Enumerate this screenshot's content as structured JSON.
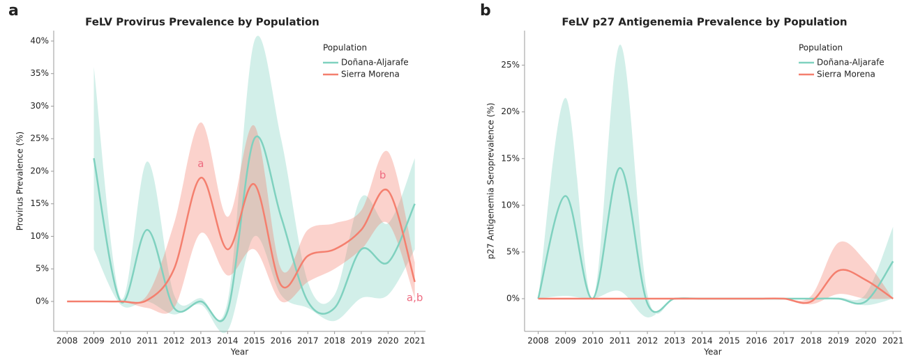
{
  "chart_data": [
    {
      "type": "line",
      "panel": "a",
      "title": "FeLV Provirus Prevalence by Population",
      "x_label": "Year",
      "y_label": "Provirus Prevalence (%)",
      "x": [
        2008,
        2009,
        2010,
        2011,
        2012,
        2013,
        2014,
        2015,
        2016,
        2017,
        2018,
        2019,
        2020,
        2021
      ],
      "xlim": [
        2007.5,
        2021.4
      ],
      "xticks": [
        2008,
        2009,
        2010,
        2011,
        2012,
        2013,
        2014,
        2015,
        2016,
        2017,
        2018,
        2019,
        2020,
        2021
      ],
      "ylim": [
        -4.6,
        41.6
      ],
      "yticks": [
        {
          "value": 0,
          "label": "0%"
        },
        {
          "value": 5,
          "label": "5%"
        },
        {
          "value": 10,
          "label": "10%"
        },
        {
          "value": 15,
          "label": "15%"
        },
        {
          "value": 20,
          "label": "20%"
        },
        {
          "value": 25,
          "label": "25%"
        },
        {
          "value": 30,
          "label": "30%"
        },
        {
          "value": 35,
          "label": "35%"
        },
        {
          "value": 40,
          "label": "40%"
        }
      ],
      "legend_title": "Population",
      "legend": "top-right",
      "series": [
        {
          "name": "Doñana-Aljarafe",
          "color": "#7fd1bf",
          "values": [
            null,
            22,
            0,
            11,
            -1,
            0,
            -1.5,
            25,
            13,
            0,
            -1,
            8,
            6,
            15
          ],
          "lower": [
            null,
            8,
            -0.5,
            0,
            -2,
            -0.5,
            -4.5,
            10,
            1,
            -1,
            -3,
            0.5,
            1,
            8
          ],
          "upper": [
            null,
            36,
            0.5,
            21.5,
            1,
            0.5,
            0,
            40,
            25,
            3,
            1,
            16,
            12,
            22
          ]
        },
        {
          "name": "Sierra Morena",
          "color": "#f47f6e",
          "values": [
            0,
            0,
            0,
            0.2,
            5,
            19,
            8,
            18,
            2.5,
            7,
            8,
            11,
            17,
            3
          ],
          "lower": [
            0,
            0,
            0,
            -1,
            -1,
            10.5,
            4,
            8,
            0,
            3,
            5,
            8,
            12,
            0.5
          ],
          "upper": [
            0,
            0,
            0,
            1,
            12,
            27.5,
            13,
            27,
            5,
            11,
            12,
            14,
            23,
            6
          ]
        }
      ],
      "annotations": [
        "a",
        "b",
        "a,b"
      ]
    },
    {
      "type": "line",
      "panel": "b",
      "title": "FeLV p27 Antigenemia Prevalence by Population",
      "x_label": "Year",
      "y_label": "p27 Antigenemia Seroprevalence (%)",
      "x": [
        2008,
        2009,
        2010,
        2011,
        2012,
        2013,
        2014,
        2015,
        2016,
        2017,
        2018,
        2019,
        2020,
        2021
      ],
      "xlim": [
        2007.5,
        2021.3
      ],
      "xticks": [
        2008,
        2009,
        2010,
        2011,
        2012,
        2013,
        2014,
        2015,
        2016,
        2017,
        2018,
        2019,
        2020,
        2021
      ],
      "ylim": [
        -3.5,
        28.7
      ],
      "yticks": [
        {
          "value": 0,
          "label": "0%"
        },
        {
          "value": 5,
          "label": "5%"
        },
        {
          "value": 10,
          "label": "10%"
        },
        {
          "value": 15,
          "label": "15%"
        },
        {
          "value": 20,
          "label": "20%"
        },
        {
          "value": 25,
          "label": "25%"
        }
      ],
      "legend_title": "Population",
      "legend": "top-right",
      "series": [
        {
          "name": "Doñana-Aljarafe",
          "color": "#7fd1bf",
          "values": [
            0,
            11,
            0,
            14,
            -0.5,
            0,
            0,
            0,
            0,
            0,
            0,
            0,
            -0.3,
            4
          ],
          "lower": [
            0,
            0.3,
            0,
            0.8,
            -2,
            0,
            0,
            0,
            0,
            0,
            0,
            -0.1,
            -0.7,
            0
          ],
          "upper": [
            0,
            21.5,
            0,
            27.2,
            0.5,
            0,
            0,
            0,
            0,
            0,
            0,
            0.1,
            0.5,
            7.7
          ]
        },
        {
          "name": "Sierra Morena",
          "color": "#f47f6e",
          "values": [
            0,
            0,
            0,
            0,
            0,
            0,
            0,
            0,
            0,
            0,
            -0.3,
            3,
            2,
            0
          ],
          "lower": [
            0,
            0,
            0,
            0,
            0,
            0,
            0,
            0,
            0,
            0,
            -0.6,
            0.5,
            0,
            0
          ],
          "upper": [
            0,
            0,
            0,
            0,
            0,
            0,
            0,
            0,
            0,
            0,
            0.3,
            6,
            4,
            0
          ]
        }
      ]
    }
  ]
}
